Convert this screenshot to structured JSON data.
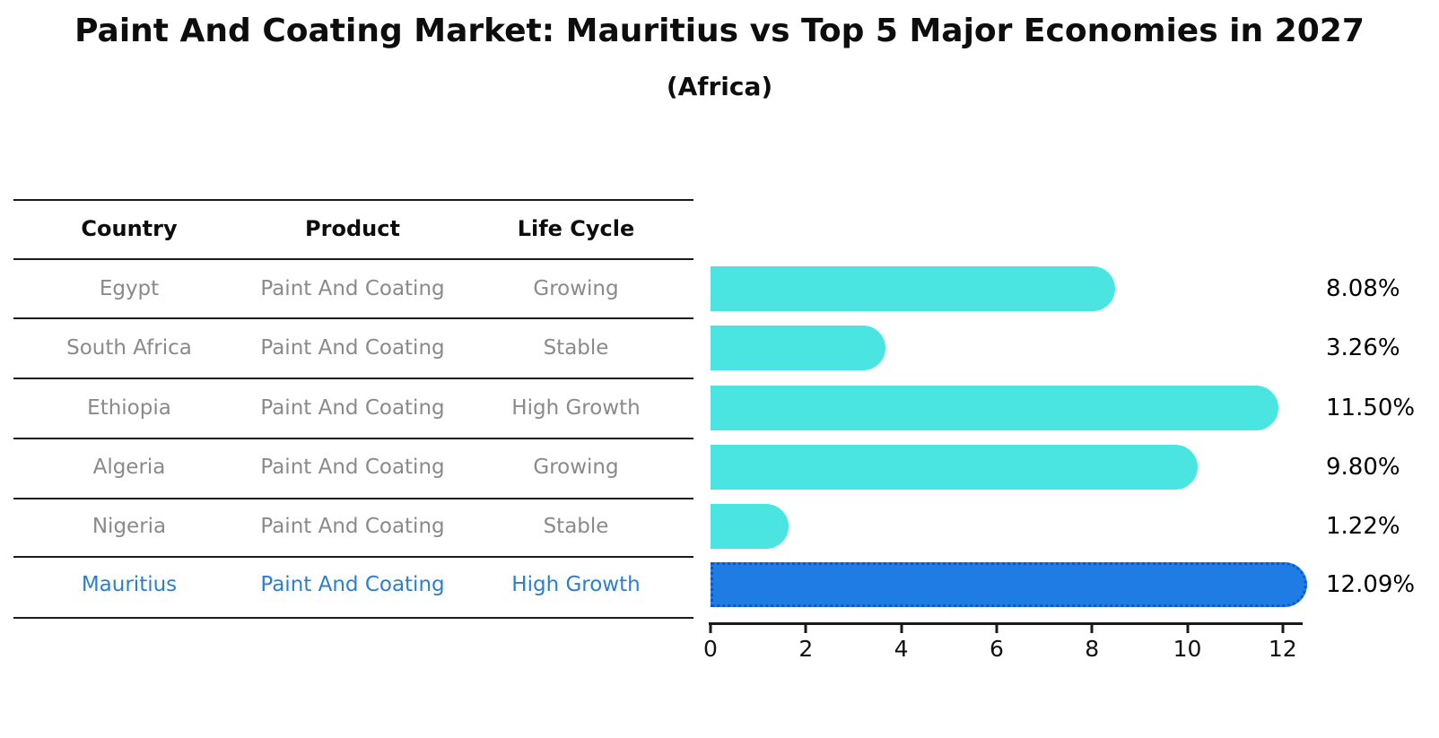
{
  "header": {
    "title": "Paint And Coating Market: Mauritius vs Top 5 Major Economies in 2027",
    "subtitle": "(Africa)"
  },
  "table": {
    "headers": [
      "Country",
      "Product",
      "Life Cycle"
    ],
    "rows": [
      {
        "country": "Egypt",
        "product": "Paint And Coating",
        "life_cycle": "Growing",
        "highlighted": false
      },
      {
        "country": "South Africa",
        "product": "Paint And Coating",
        "life_cycle": "Stable",
        "highlighted": false
      },
      {
        "country": "Ethiopia",
        "product": "Paint And Coating",
        "life_cycle": "High Growth",
        "highlighted": false
      },
      {
        "country": "Algeria",
        "product": "Paint And Coating",
        "life_cycle": "Growing",
        "highlighted": false
      },
      {
        "country": "Nigeria",
        "product": "Paint And Coating",
        "life_cycle": "Stable",
        "highlighted": false
      },
      {
        "country": "Mauritius",
        "product": "Paint And Coating",
        "life_cycle": "High Growth",
        "highlighted": true
      }
    ]
  },
  "chart_data": {
    "type": "bar",
    "orientation": "horizontal",
    "title": "Paint And Coating Market: Mauritius vs Top 5 Major Economies in 2027",
    "subtitle": "(Africa)",
    "categories": [
      "Egypt",
      "South Africa",
      "Ethiopia",
      "Algeria",
      "Nigeria",
      "Mauritius"
    ],
    "values": [
      8.08,
      3.26,
      11.5,
      9.8,
      1.22,
      12.09
    ],
    "value_labels": [
      "8.08%",
      "3.26%",
      "11.50%",
      "9.80%",
      "1.22%",
      "12.09%"
    ],
    "x_ticks": [
      "0",
      "2",
      "4",
      "6",
      "8",
      "10",
      "12"
    ],
    "xlim": [
      0,
      12.6
    ],
    "grid": false,
    "legend": false,
    "bar_color": "#4AE5E1",
    "highlight_bar_color": "#1E7CE4",
    "highlight_edge_color": "#0D57CC",
    "highlight_index": 5
  },
  "colors": {
    "accent_text": "#2A7FD1",
    "muted_text": "#8A8A8A",
    "line": "#1B1B1B",
    "label_text": "#000000"
  }
}
